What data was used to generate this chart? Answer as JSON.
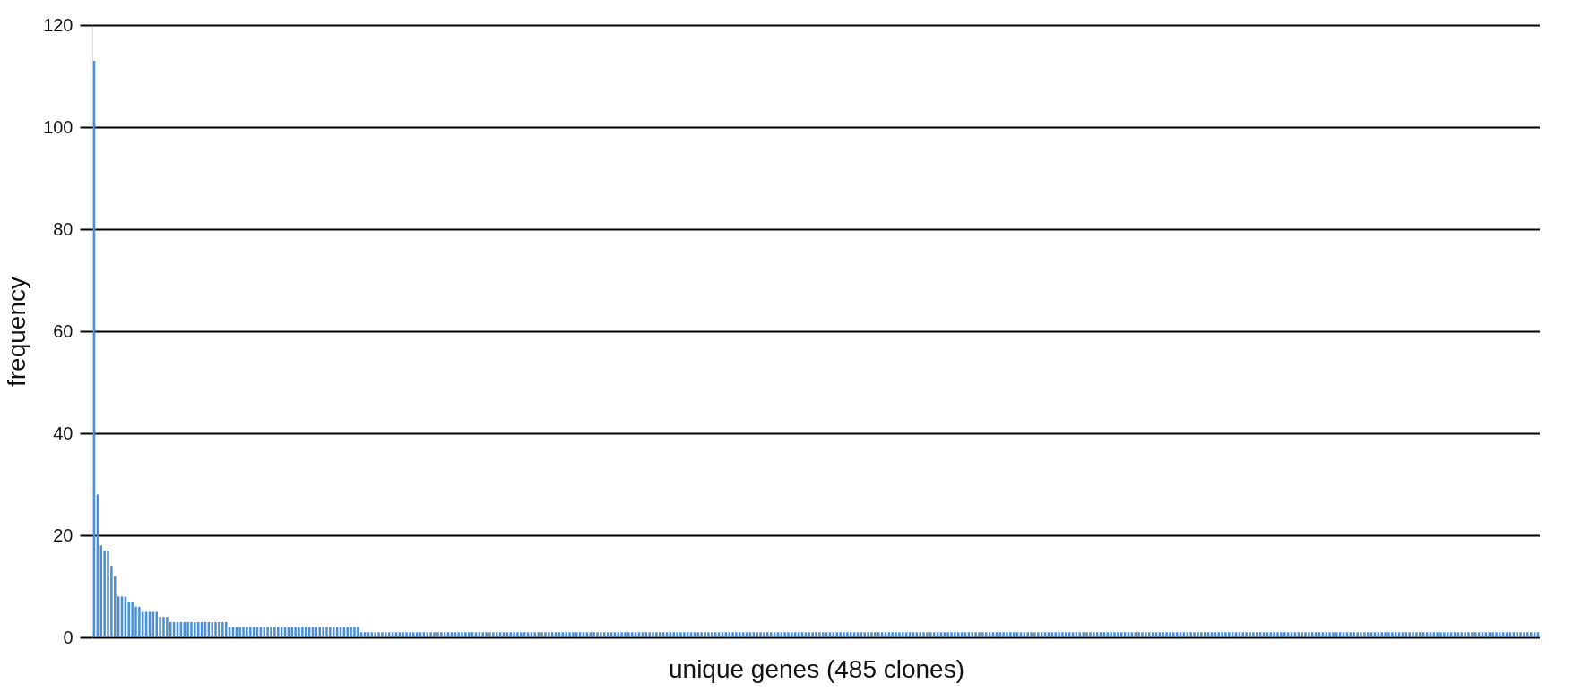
{
  "chart_data": {
    "type": "bar",
    "xlabel": "unique genes (485 clones)",
    "ylabel": "frequency",
    "color": "#4a8fdc",
    "categories": [
      null,
      null,
      null,
      null,
      null,
      null,
      null,
      null,
      null,
      null,
      null,
      null,
      null,
      null,
      null,
      null,
      null,
      null,
      null,
      null,
      null,
      null,
      null,
      null,
      null,
      null,
      null,
      null,
      null,
      null,
      null,
      null,
      null,
      null,
      null,
      null,
      null,
      null,
      null,
      null,
      null,
      null,
      null,
      null,
      null,
      null,
      null,
      null,
      null,
      null,
      null,
      null,
      null,
      null,
      null,
      null,
      null,
      null,
      null,
      null,
      null,
      null,
      null,
      null,
      null,
      null,
      null,
      null,
      null,
      null,
      null,
      null,
      null,
      null,
      null,
      null,
      null,
      null,
      null,
      null,
      null,
      null,
      null,
      null,
      null,
      null,
      null,
      null,
      null,
      null,
      null,
      null,
      null,
      null,
      null,
      null,
      null,
      null,
      null,
      null,
      null,
      null,
      null,
      null,
      null,
      null,
      null,
      null,
      null,
      null,
      null,
      null,
      null,
      null,
      null,
      null,
      null,
      null,
      null,
      null,
      null,
      null,
      null,
      null,
      null,
      null,
      null,
      null,
      null,
      null,
      null,
      null,
      null,
      null,
      null,
      null,
      null,
      null,
      null,
      null,
      null,
      null,
      null,
      null,
      null,
      null,
      null,
      null,
      null,
      null,
      null,
      null,
      null,
      null,
      null,
      null,
      null,
      null,
      null,
      null,
      null,
      null,
      null,
      null,
      null,
      null,
      null,
      null,
      null,
      null,
      null,
      null,
      null,
      null,
      null,
      null,
      null,
      null,
      null,
      null,
      null,
      null,
      null,
      null,
      null,
      null,
      null,
      null,
      null,
      null,
      null,
      null,
      null,
      null,
      null,
      null,
      null,
      null,
      null,
      null,
      null,
      null,
      null,
      null,
      null,
      null,
      null,
      null,
      null,
      null,
      null,
      null,
      null,
      null,
      null,
      null,
      null,
      null,
      null,
      null,
      null,
      null,
      null,
      null,
      null,
      null,
      null,
      null,
      null,
      null,
      null,
      null,
      null,
      null,
      null,
      null,
      null,
      null,
      null,
      null,
      null,
      null,
      null,
      null,
      null,
      null,
      null,
      null,
      null,
      null,
      null,
      null,
      null,
      null,
      null,
      null,
      null,
      null,
      null,
      null,
      null,
      null,
      null,
      null,
      null,
      null,
      null,
      null,
      null,
      null,
      null,
      null,
      null,
      null,
      null,
      null,
      null,
      null,
      null,
      null,
      null,
      null,
      null,
      null,
      null,
      null,
      null,
      null,
      null,
      null,
      null,
      null,
      null,
      null,
      null,
      null,
      null,
      null,
      null,
      null,
      null,
      null,
      null,
      null,
      null,
      null,
      null,
      null,
      null,
      null,
      null,
      null,
      null,
      null,
      null,
      null,
      null,
      null,
      null,
      null,
      null,
      null,
      null,
      null,
      null,
      null,
      null,
      null,
      null,
      null,
      null,
      null,
      null,
      null,
      null,
      null,
      null,
      null,
      null,
      null,
      null,
      null,
      null,
      null,
      null,
      null,
      null,
      null,
      null,
      null,
      null,
      null,
      null,
      null,
      null,
      null,
      null,
      null,
      null,
      null,
      null,
      null,
      null,
      null,
      null,
      null,
      null,
      null,
      null,
      null,
      null,
      null,
      null,
      null,
      null,
      null,
      null,
      null,
      null,
      null,
      null,
      null,
      null,
      null,
      null,
      null,
      null,
      null,
      null,
      null,
      null,
      null,
      null,
      null,
      null,
      null,
      null,
      null,
      null,
      null,
      null,
      null,
      null,
      null,
      null,
      null,
      null,
      null,
      null,
      null,
      null,
      null,
      null,
      null,
      null,
      null,
      null
    ],
    "values": [
      113,
      28,
      18,
      17,
      17,
      14,
      12,
      8,
      8,
      8,
      7,
      7,
      6,
      6,
      5,
      5,
      5,
      5,
      5,
      4,
      4,
      4,
      3,
      3,
      3,
      3,
      3,
      3,
      3,
      3,
      3,
      3,
      3,
      3,
      3,
      3,
      3,
      3,
      3,
      2,
      2,
      2,
      2,
      2,
      2,
      2,
      2,
      2,
      2,
      2,
      2,
      2,
      2,
      2,
      2,
      2,
      2,
      2,
      2,
      2,
      2,
      2,
      2,
      2,
      2,
      2,
      2,
      2,
      2,
      2,
      2,
      2,
      2,
      2,
      2,
      2,
      2,
      1,
      1,
      1,
      1,
      1,
      1,
      1,
      1,
      1,
      1,
      1,
      1,
      1,
      1,
      1,
      1,
      1,
      1,
      1,
      1,
      1,
      1,
      1,
      1,
      1,
      1,
      1,
      1,
      1,
      1,
      1,
      1,
      1,
      1,
      1,
      1,
      1,
      1,
      1,
      1,
      1,
      1,
      1,
      1,
      1,
      1,
      1,
      1,
      1,
      1,
      1,
      1,
      1,
      1,
      1,
      1,
      1,
      1,
      1,
      1,
      1,
      1,
      1,
      1,
      1,
      1,
      1,
      1,
      1,
      1,
      1,
      1,
      1,
      1,
      1,
      1,
      1,
      1,
      1,
      1,
      1,
      1,
      1,
      1,
      1,
      1,
      1,
      1,
      1,
      1,
      1,
      1,
      1,
      1,
      1,
      1,
      1,
      1,
      1,
      1,
      1,
      1,
      1,
      1,
      1,
      1,
      1,
      1,
      1,
      1,
      1,
      1,
      1,
      1,
      1,
      1,
      1,
      1,
      1,
      1,
      1,
      1,
      1,
      1,
      1,
      1,
      1,
      1,
      1,
      1,
      1,
      1,
      1,
      1,
      1,
      1,
      1,
      1,
      1,
      1,
      1,
      1,
      1,
      1,
      1,
      1,
      1,
      1,
      1,
      1,
      1,
      1,
      1,
      1,
      1,
      1,
      1,
      1,
      1,
      1,
      1,
      1,
      1,
      1,
      1,
      1,
      1,
      1,
      1,
      1,
      1,
      1,
      1,
      1,
      1,
      1,
      1,
      1,
      1,
      1,
      1,
      1,
      1,
      1,
      1,
      1,
      1,
      1,
      1,
      1,
      1,
      1,
      1,
      1,
      1,
      1,
      1,
      1,
      1,
      1,
      1,
      1,
      1,
      1,
      1,
      1,
      1,
      1,
      1,
      1,
      1,
      1,
      1,
      1,
      1,
      1,
      1,
      1,
      1,
      1,
      1,
      1,
      1,
      1,
      1,
      1,
      1,
      1,
      1,
      1,
      1,
      1,
      1,
      1,
      1,
      1,
      1,
      1,
      1,
      1,
      1,
      1,
      1,
      1,
      1,
      1,
      1,
      1,
      1,
      1,
      1,
      1,
      1,
      1,
      1,
      1,
      1,
      1,
      1,
      1,
      1,
      1,
      1,
      1,
      1,
      1,
      1,
      1,
      1,
      1,
      1,
      1,
      1,
      1,
      1,
      1,
      1,
      1,
      1,
      1,
      1,
      1,
      1,
      1,
      1,
      1,
      1,
      1,
      1,
      1,
      1,
      1,
      1,
      1,
      1,
      1,
      1,
      1,
      1,
      1,
      1,
      1,
      1,
      1,
      1,
      1,
      1,
      1,
      1,
      1,
      1,
      1,
      1,
      1,
      1,
      1,
      1,
      1,
      1,
      1,
      1,
      1,
      1,
      1,
      1,
      1,
      1,
      1,
      1,
      1,
      1,
      1,
      1,
      1,
      1,
      1,
      1,
      1,
      1,
      1
    ],
    "ylim": [
      0,
      120
    ],
    "yticks": [
      0,
      20,
      40,
      60,
      80,
      100,
      120
    ],
    "grid": "y",
    "tick_labels": "y"
  }
}
